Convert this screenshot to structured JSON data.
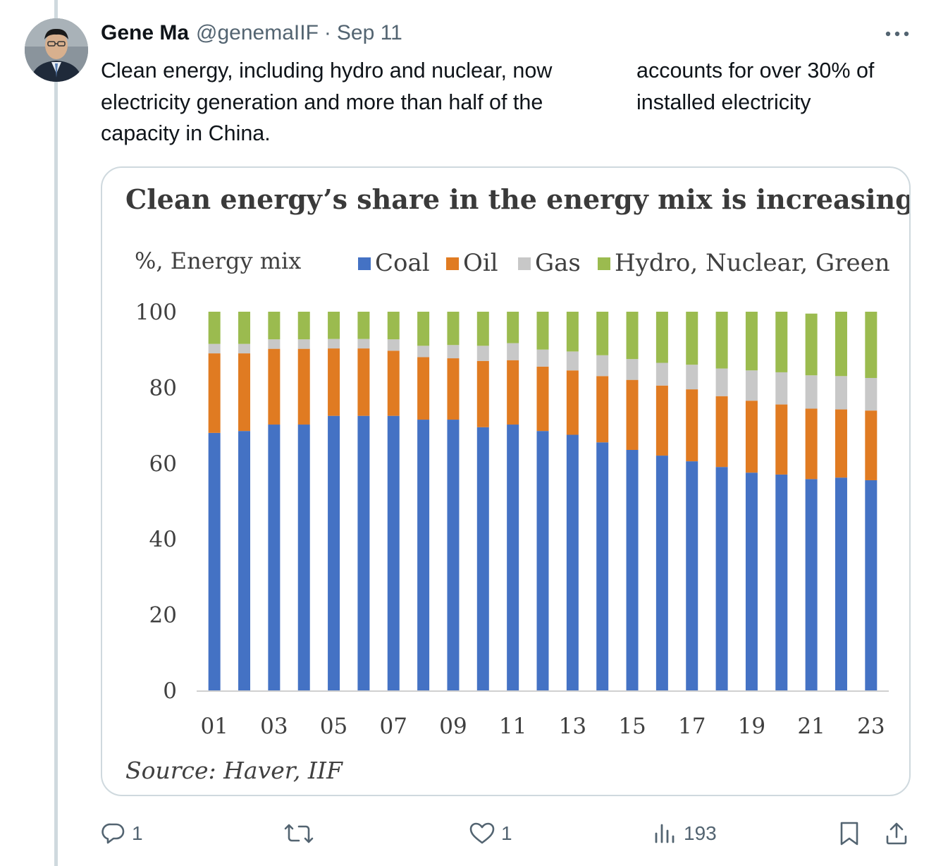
{
  "tweet": {
    "author_name": "Gene Ma",
    "handle": "@genemaIIF",
    "separator": "·",
    "date": "Sep 11",
    "text_left_lines": [
      "Clean energy, including hydro and nuclear, now",
      "electricity generation and more than half of the",
      "capacity in China."
    ],
    "text_right_lines": [
      "accounts for over 30% of",
      "installed electricity"
    ]
  },
  "actions": {
    "replies": "1",
    "retweets": "",
    "likes": "1",
    "views": "193"
  },
  "colors": {
    "coal": "#4472c4",
    "oil": "#e07b22",
    "gas": "#c8c8c8",
    "clean": "#9bbb4f",
    "text_secondary": "#536471"
  },
  "icons": [
    "more-icon",
    "reply-icon",
    "retweet-icon",
    "like-icon",
    "views-icon",
    "bookmark-icon",
    "share-icon"
  ],
  "chart_data": {
    "type": "bar",
    "stacked": true,
    "title": "Clean energy’s share in the energy mix is increasing",
    "ylabel": "%, Energy mix",
    "source": "Source: Haver, IIF",
    "ylim": [
      0,
      100
    ],
    "yticks": [
      0,
      20,
      40,
      60,
      80,
      100
    ],
    "legend_position": "top",
    "categories": [
      "01",
      "02",
      "03",
      "04",
      "05",
      "06",
      "07",
      "08",
      "09",
      "10",
      "11",
      "12",
      "13",
      "14",
      "15",
      "16",
      "17",
      "18",
      "19",
      "20",
      "21",
      "22",
      "23"
    ],
    "xtick_labels": [
      "01",
      "03",
      "05",
      "07",
      "09",
      "11",
      "13",
      "15",
      "17",
      "19",
      "21",
      "23"
    ],
    "series": [
      {
        "name": "Coal",
        "values": [
          68.0,
          68.5,
          70.2,
          70.2,
          72.5,
          72.5,
          72.5,
          71.5,
          71.5,
          69.5,
          70.2,
          68.5,
          67.5,
          65.5,
          63.5,
          62.0,
          60.5,
          59.0,
          57.5,
          57.0,
          55.8,
          56.2,
          55.5
        ]
      },
      {
        "name": "Oil",
        "values": [
          21.0,
          20.5,
          20.0,
          20.0,
          17.8,
          17.8,
          17.2,
          16.5,
          16.2,
          17.5,
          17.0,
          17.0,
          17.0,
          17.5,
          18.5,
          18.5,
          19.0,
          18.7,
          19.0,
          18.5,
          18.6,
          18.0,
          18.4
        ]
      },
      {
        "name": "Gas",
        "values": [
          2.5,
          2.5,
          2.5,
          2.5,
          2.5,
          2.5,
          3.0,
          3.0,
          3.5,
          4.0,
          4.5,
          4.5,
          5.0,
          5.5,
          5.5,
          6.0,
          6.5,
          7.3,
          8.0,
          8.5,
          8.8,
          8.8,
          8.6
        ]
      },
      {
        "name": "Hydro, Nuclear, Green",
        "values": [
          8.5,
          8.5,
          7.3,
          7.3,
          7.2,
          7.2,
          7.3,
          9.0,
          8.8,
          9.0,
          8.3,
          10.0,
          10.5,
          11.5,
          12.5,
          13.5,
          14.0,
          15.0,
          15.5,
          16.0,
          16.3,
          17.0,
          17.5
        ]
      }
    ]
  }
}
